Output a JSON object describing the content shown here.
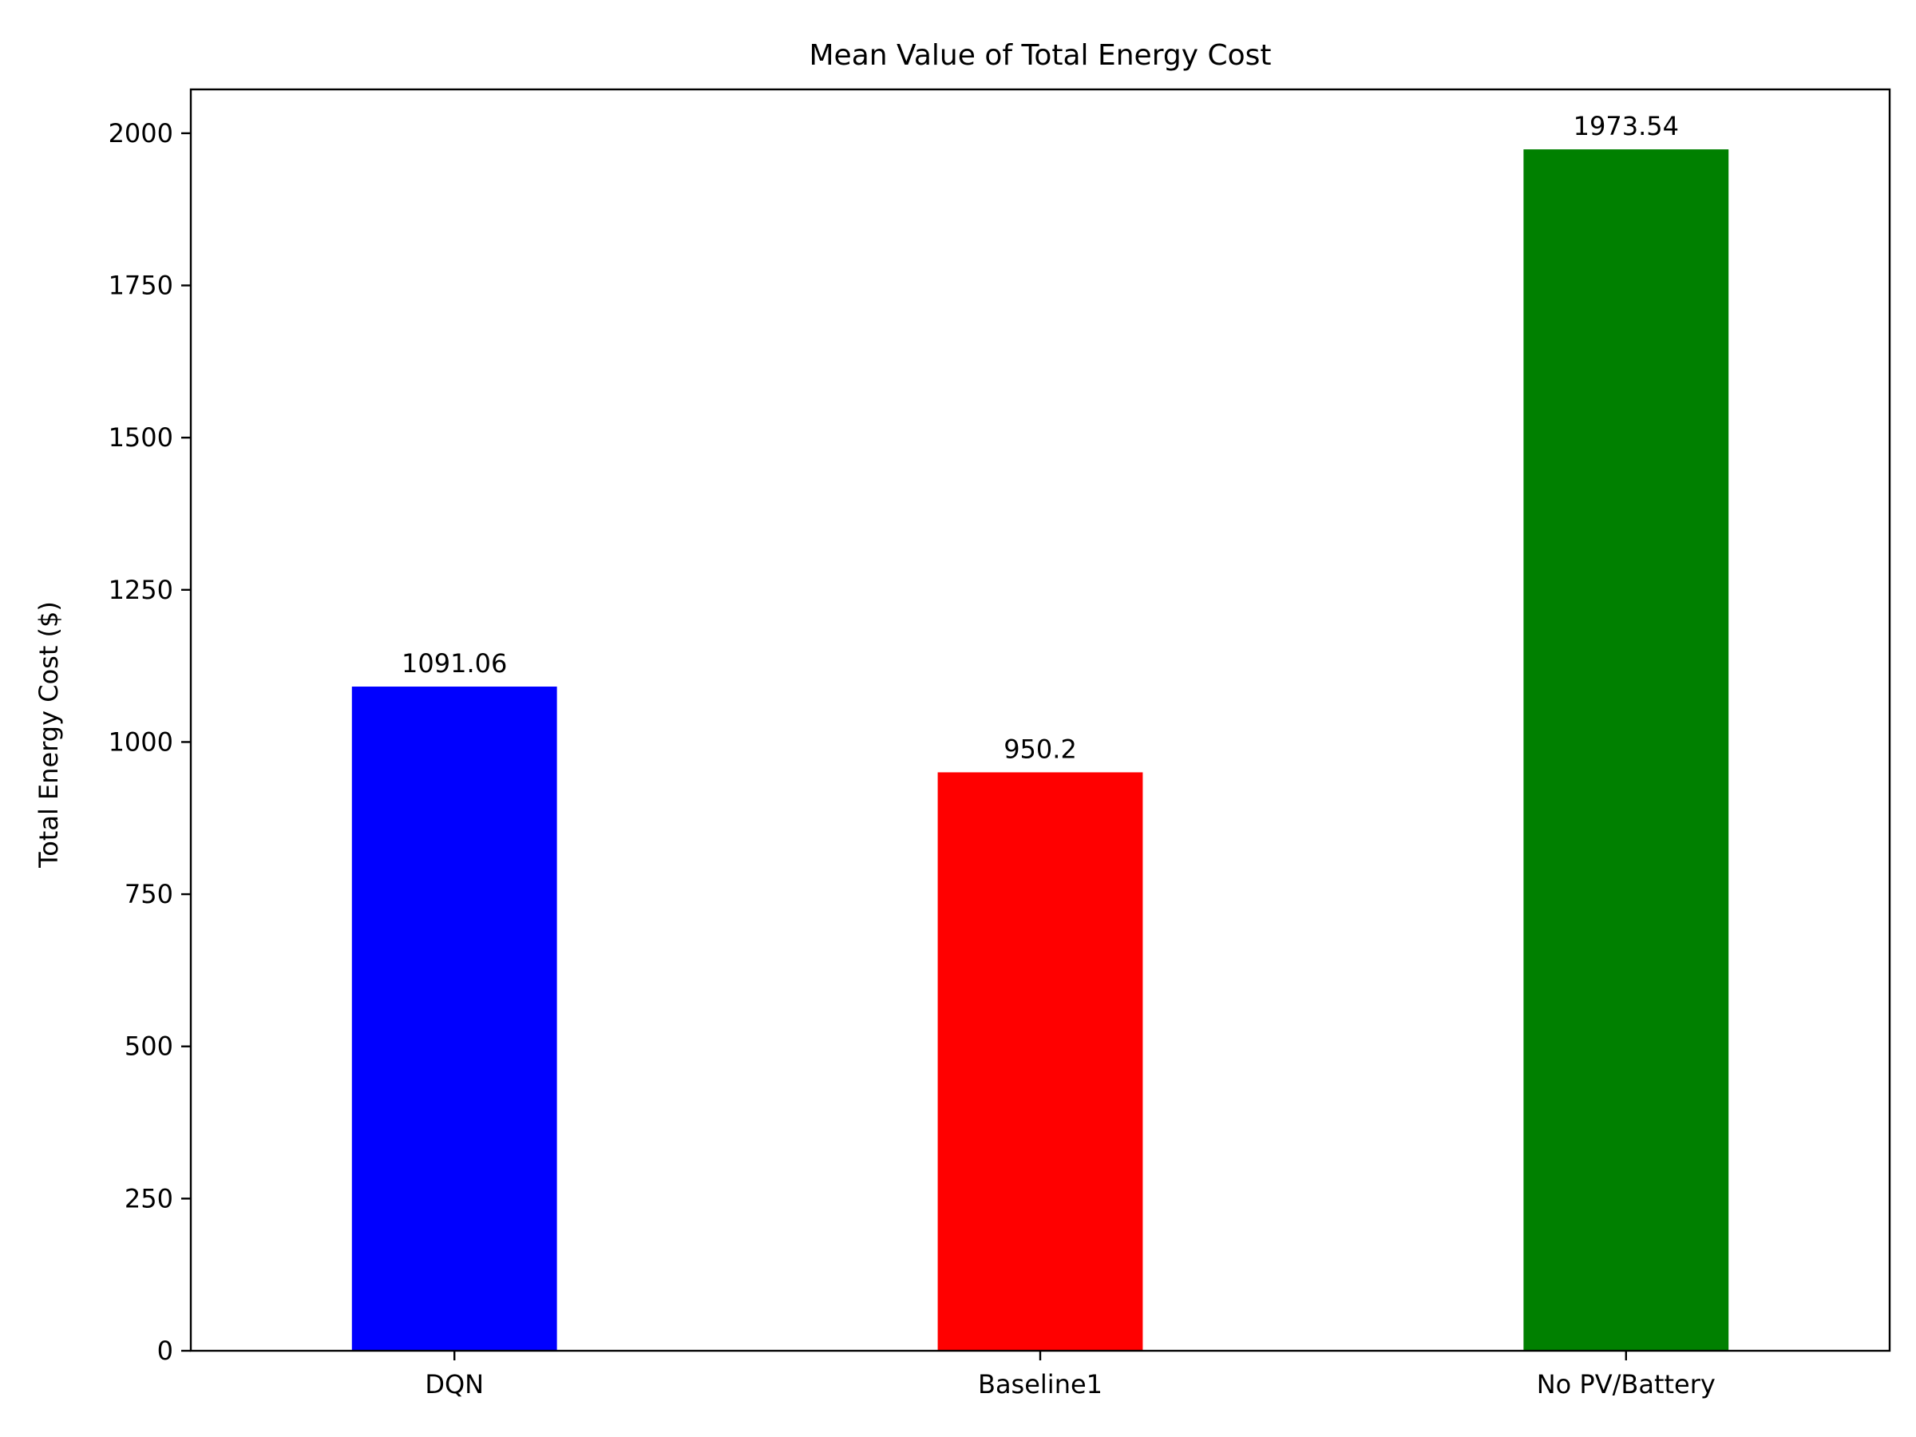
{
  "chart_data": {
    "type": "bar",
    "title": "Mean Value of Total Energy Cost",
    "xlabel": "",
    "ylabel": "Total Energy Cost ($)",
    "categories": [
      "DQN",
      "Baseline1",
      "No PV/Battery"
    ],
    "values": [
      1091.06,
      950.2,
      1973.54
    ],
    "value_labels": [
      "1091.06",
      "950.2",
      "1973.54"
    ],
    "colors": [
      "#0000ff",
      "#ff0000",
      "#008000"
    ],
    "ylim": [
      0,
      2072
    ],
    "yticks": [
      0,
      250,
      500,
      750,
      1000,
      1250,
      1500,
      1750,
      2000
    ],
    "ytick_labels": [
      "0",
      "250",
      "500",
      "750",
      "1000",
      "1250",
      "1500",
      "1750",
      "2000"
    ],
    "grid": false,
    "legend": "none"
  }
}
